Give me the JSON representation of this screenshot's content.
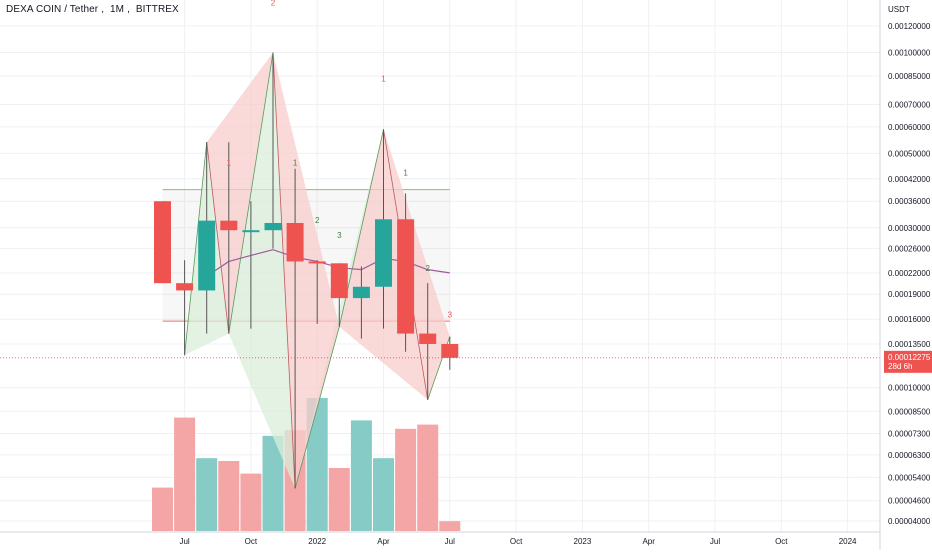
{
  "header": {
    "symbol": "DEXA COIN / Tether",
    "interval": "1M",
    "exchange": "BITTREX",
    "currency": "USDT"
  },
  "price_badge": {
    "value": "0.00012275",
    "countdown": "28d 6h"
  },
  "colors": {
    "up": "#26a69a",
    "down": "#ef5350",
    "vol_up": "#86cbc6",
    "vol_down": "#f4a6a6",
    "ma": "#a05aa0",
    "zigzag_up_fill": "#d9edd9",
    "zigzag_up_stroke": "#5a9a5a",
    "zigzag_down_fill": "#f8cccc",
    "zigzag_down_stroke": "#c05a5a",
    "grid": "#eef0f4",
    "axis_text": "#131722",
    "box_green": "#7cc47c",
    "box_red": "#e57373"
  },
  "chart_data": {
    "type": "candlestick",
    "title": "DEXA COIN / Tether, 1M, BITTREX",
    "y_scale": "log",
    "y_axis_ticks": [
      "0.00120000",
      "0.00100000",
      "0.00085000",
      "0.00070000",
      "0.00060000",
      "0.00050000",
      "0.00042000",
      "0.00036000",
      "0.00030000",
      "0.00026000",
      "0.00022000",
      "0.00019000",
      "0.00016000",
      "0.00013500",
      "0.00010000",
      "0.00008500",
      "0.00007300",
      "0.00006300",
      "0.00005400",
      "0.00004600",
      "0.00004000"
    ],
    "x_axis_ticks": [
      "Jul",
      "Oct",
      "2022",
      "Apr",
      "Jul",
      "Oct",
      "2023",
      "Apr",
      "Jul",
      "Oct",
      "2024"
    ],
    "candles": [
      {
        "month": "2021-06",
        "open": 0.00036,
        "high": 0.00036,
        "low": 0.000205,
        "close": 0.000205
      },
      {
        "month": "2021-07",
        "open": 0.000205,
        "high": 0.00024,
        "low": 0.000125,
        "close": 0.000195
      },
      {
        "month": "2021-08",
        "open": 0.000195,
        "high": 0.00054,
        "low": 0.000145,
        "close": 0.000315
      },
      {
        "month": "2021-09",
        "open": 0.000315,
        "high": 0.00054,
        "low": 0.000145,
        "close": 0.000295
      },
      {
        "month": "2021-10",
        "open": 0.000295,
        "high": 0.00036,
        "low": 0.00015,
        "close": 0.000295
      },
      {
        "month": "2021-11",
        "open": 0.000295,
        "high": 0.001,
        "low": 0.00026,
        "close": 0.00031
      },
      {
        "month": "2021-12",
        "open": 0.00031,
        "high": 0.00045,
        "low": 5e-05,
        "close": 0.000238
      },
      {
        "month": "2022-01",
        "open": 0.000238,
        "high": 0.00024,
        "low": 0.000155,
        "close": 0.000235
      },
      {
        "month": "2022-02",
        "open": 0.000235,
        "high": 0.000235,
        "low": 0.000152,
        "close": 0.000185
      },
      {
        "month": "2022-03",
        "open": 0.000185,
        "high": 0.00023,
        "low": 0.00014,
        "close": 0.0002
      },
      {
        "month": "2022-04",
        "open": 0.0002,
        "high": 0.00059,
        "low": 0.00015,
        "close": 0.000318
      },
      {
        "month": "2022-05",
        "open": 0.000318,
        "high": 0.00038,
        "low": 0.000128,
        "close": 0.000145
      },
      {
        "month": "2022-06",
        "open": 0.000145,
        "high": 0.000205,
        "low": 9.2e-05,
        "close": 0.000135
      },
      {
        "month": "2022-07",
        "open": 0.000135,
        "high": 0.000142,
        "low": 0.000113,
        "close": 0.00012275
      }
    ],
    "volume": [
      {
        "month": "2021-06",
        "dir": "down",
        "value": 0.31
      },
      {
        "month": "2021-07",
        "dir": "down",
        "value": 0.81
      },
      {
        "month": "2021-08",
        "dir": "up",
        "value": 0.52
      },
      {
        "month": "2021-09",
        "dir": "down",
        "value": 0.5
      },
      {
        "month": "2021-10",
        "dir": "down",
        "value": 0.41
      },
      {
        "month": "2021-11",
        "dir": "up",
        "value": 0.68
      },
      {
        "month": "2021-12",
        "dir": "down",
        "value": 0.72
      },
      {
        "month": "2022-01",
        "dir": "up",
        "value": 0.95
      },
      {
        "month": "2022-02",
        "dir": "down",
        "value": 0.45
      },
      {
        "month": "2022-03",
        "dir": "up",
        "value": 0.79
      },
      {
        "month": "2022-04",
        "dir": "up",
        "value": 0.52
      },
      {
        "month": "2022-05",
        "dir": "down",
        "value": 0.73
      },
      {
        "month": "2022-06",
        "dir": "down",
        "value": 0.76
      },
      {
        "month": "2022-07",
        "dir": "down",
        "value": 0.07
      }
    ],
    "moving_average": [
      {
        "month": "2021-08",
        "value": 0.000215
      },
      {
        "month": "2021-09",
        "value": 0.000238
      },
      {
        "month": "2021-10",
        "value": 0.000248
      },
      {
        "month": "2021-11",
        "value": 0.000258
      },
      {
        "month": "2021-12",
        "value": 0.000245
      },
      {
        "month": "2022-01",
        "value": 0.000238
      },
      {
        "month": "2022-02",
        "value": 0.000228
      },
      {
        "month": "2022-03",
        "value": 0.000225
      },
      {
        "month": "2022-04",
        "value": 0.000243
      },
      {
        "month": "2022-05",
        "value": 0.000238
      },
      {
        "month": "2022-06",
        "value": 0.000225
      },
      {
        "month": "2022-07",
        "value": 0.00022
      }
    ],
    "zigzag": [
      {
        "month": "2021-07",
        "price": 0.000125
      },
      {
        "month": "2021-08",
        "price": 0.00054
      },
      {
        "month": "2021-09",
        "price": 0.000145
      },
      {
        "month": "2021-11",
        "price": 0.001
      },
      {
        "month": "2021-12",
        "price": 5e-05
      },
      {
        "month": "2022-02",
        "price": 0.000152
      },
      {
        "month": "2022-04",
        "price": 0.00059
      },
      {
        "month": "2022-06",
        "price": 9.2e-05
      },
      {
        "month": "2022-07",
        "price": 0.000142
      }
    ],
    "zigzag_labels": [
      {
        "month": "2021-09",
        "price": 0.00046,
        "text": "1",
        "color": "down"
      },
      {
        "month": "2021-11",
        "price": 0.00138,
        "text": "2",
        "color": "down"
      },
      {
        "month": "2021-12",
        "price": 0.00046,
        "text": "1",
        "color": "up"
      },
      {
        "month": "2022-01",
        "price": 0.00031,
        "text": "2",
        "color": "up"
      },
      {
        "month": "2022-02",
        "price": 0.00028,
        "text": "3",
        "color": "up"
      },
      {
        "month": "2022-04",
        "price": 0.00082,
        "text": "1",
        "color": "down"
      },
      {
        "month": "2022-05",
        "price": 0.00043,
        "text": "1",
        "color": "up"
      },
      {
        "month": "2022-06",
        "price": 0.000223,
        "text": "2",
        "color": "up"
      },
      {
        "month": "2022-07",
        "price": 0.000162,
        "text": "3",
        "color": "down"
      }
    ],
    "range_box": {
      "from": "2021-06",
      "to": "2022-07",
      "top": 0.00039,
      "bottom": 0.000158
    },
    "last_price": 0.00012275
  }
}
